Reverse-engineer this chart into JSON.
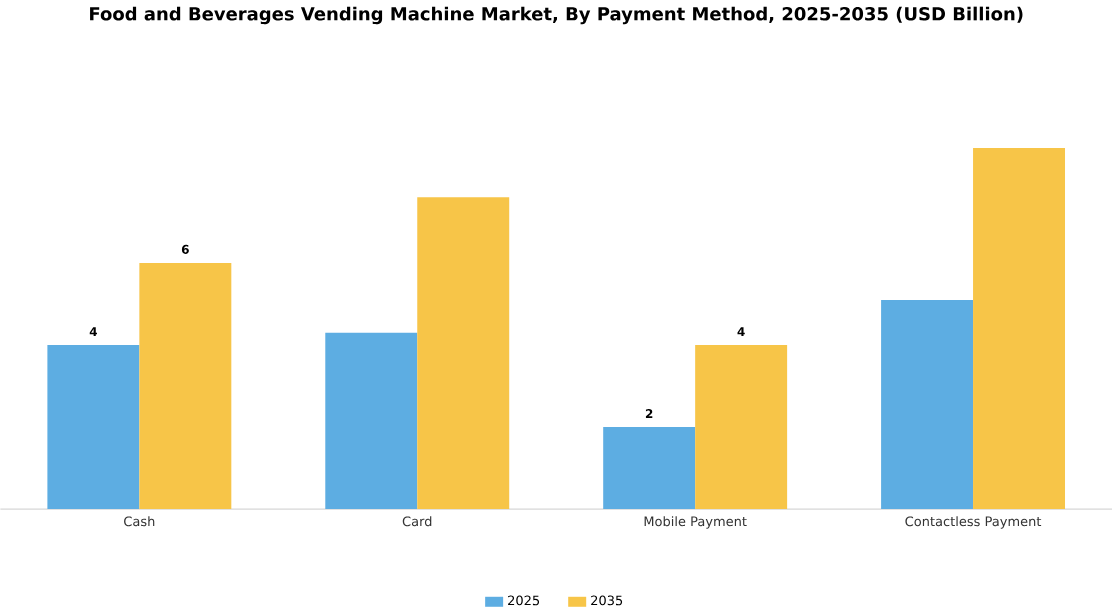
{
  "chart_data": {
    "type": "bar",
    "title": "Food and Beverages Vending Machine Market, By Payment Method, 2025-2035 (USD Billion)",
    "categories": [
      "Cash",
      "Card",
      "Mobile Payment",
      "Contactless Payment"
    ],
    "series": [
      {
        "name": "2025",
        "color": "#5dade2",
        "values": [
          4,
          4.3,
          2,
          5.1
        ],
        "value_labels": [
          "4",
          null,
          "2",
          null
        ]
      },
      {
        "name": "2035",
        "color": "#f7c548",
        "values": [
          6,
          7.6,
          4,
          8.8
        ],
        "value_labels": [
          "6",
          null,
          "4",
          null
        ]
      }
    ],
    "legend": "bottom"
  }
}
